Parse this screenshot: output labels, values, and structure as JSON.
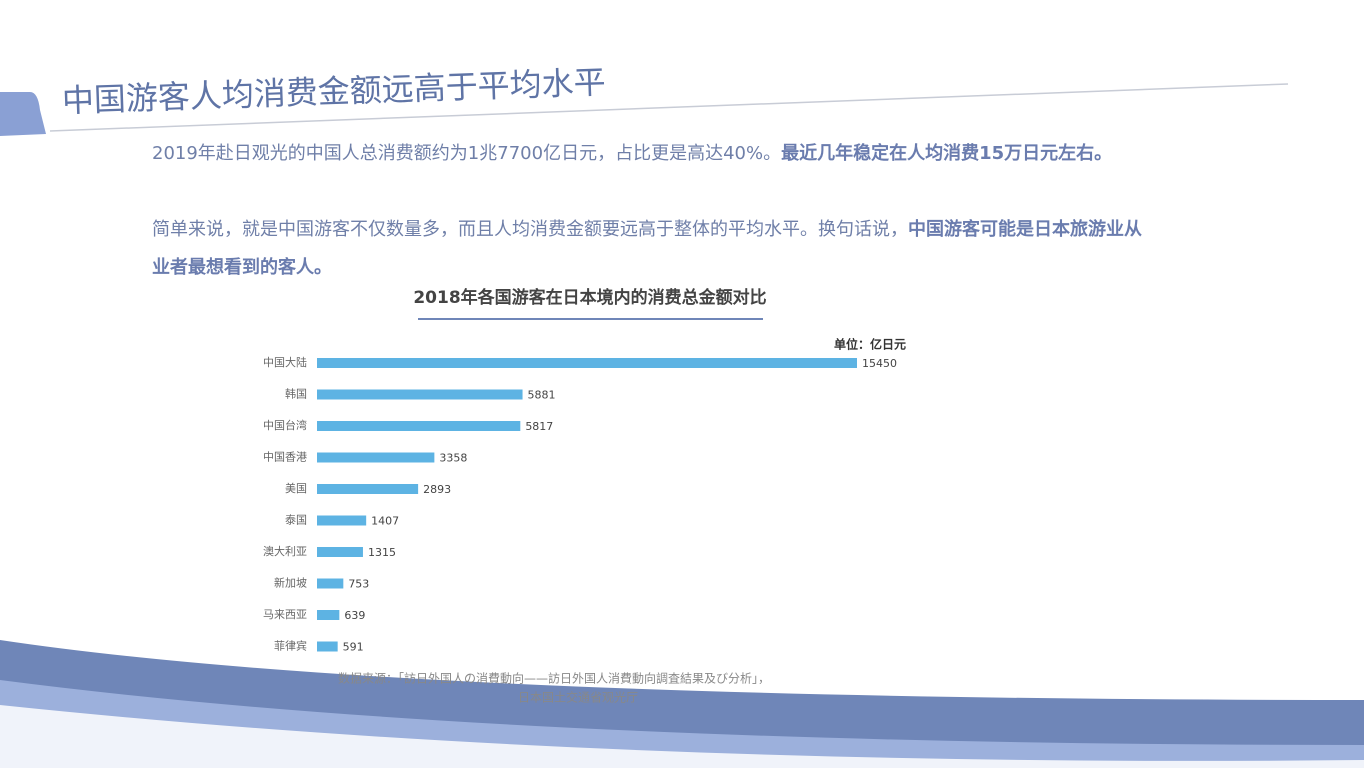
{
  "slide": {
    "title": "中国游客人均消费金额远高于平均水平",
    "paragraphs": [
      [
        {
          "text": "2019年赴日观光的中国人总消费额约为1兆7700亿日元，占比更是高达40%。",
          "bold": false
        },
        {
          "text": "最近几年稳定在人均消费15万日元左右。",
          "bold": true
        }
      ],
      [
        {
          "text": "简单来说，就是中国游客不仅数量多，而且人均消费金额要远高于整体的平均水平。换句话说，",
          "bold": false
        },
        {
          "text": "中国游客可能是日本旅游业从业者最想看到的客人。",
          "bold": true
        }
      ]
    ]
  },
  "chart_data": {
    "type": "hbar",
    "title": "2018年各国游客在日本境内的消费总金额对比",
    "unit": "单位：亿日元",
    "categories": [
      "中国大陆",
      "韩国",
      "中国台湾",
      "中国香港",
      "美国",
      "泰国",
      "澳大利亚",
      "新加坡",
      "马来西亚",
      "菲律宾"
    ],
    "values": [
      15450,
      5881,
      5817,
      3358,
      2893,
      1407,
      1315,
      753,
      639,
      591
    ],
    "color": "#5db3e3",
    "source": [
      "数据来源：「訪日外国人の消費動向——訪日外国人消費動向調査結果及び分析」，",
      "日本国土交通省观光厅"
    ]
  }
}
